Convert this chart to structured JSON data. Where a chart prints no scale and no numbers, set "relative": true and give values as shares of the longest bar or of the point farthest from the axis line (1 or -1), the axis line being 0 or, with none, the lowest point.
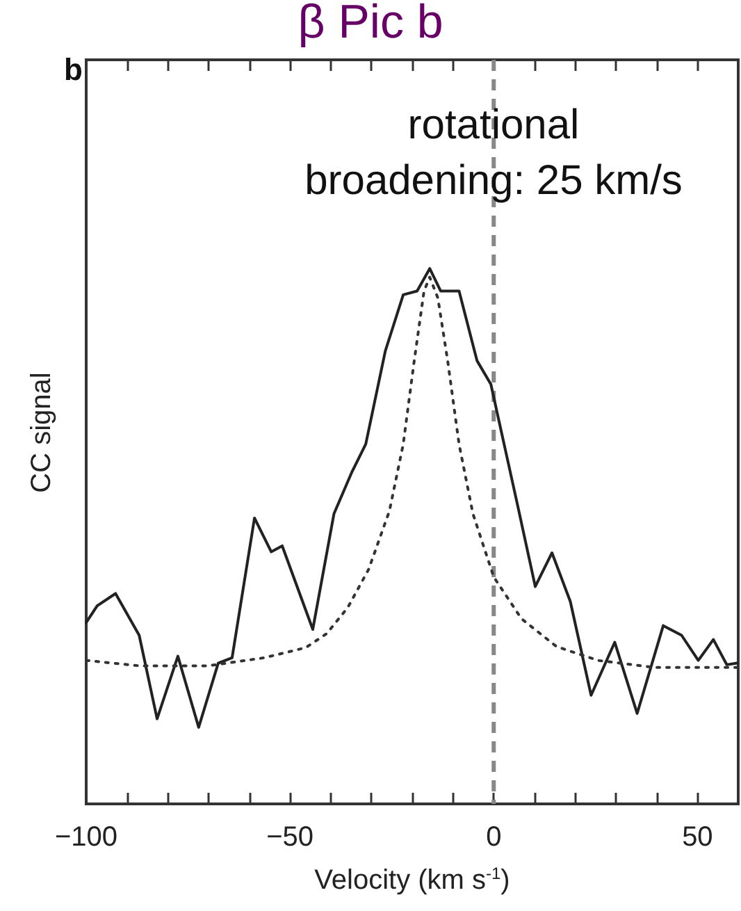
{
  "chart_data": {
    "type": "line",
    "title": "β Pic b",
    "xlabel": "Velocity (km s$^{-1}$)",
    "ylabel": "CC signal",
    "relative": true,
    "annotations": [
      "b",
      "rotational\nbroadening: 25 km/s"
    ],
    "xlim": [
      -100,
      60
    ],
    "xticks": [
      {
        "value": -100,
        "label": "−100"
      },
      {
        "value": -90,
        "label": null
      },
      {
        "value": -80,
        "label": null
      },
      {
        "value": -70,
        "label": null
      },
      {
        "value": -60,
        "label": null
      },
      {
        "value": -50,
        "label": "−50"
      },
      {
        "value": -40,
        "label": null
      },
      {
        "value": -30,
        "label": null
      },
      {
        "value": -20,
        "label": null
      },
      {
        "value": -10,
        "label": null
      },
      0,
      {
        "value": 10,
        "label": null
      },
      {
        "value": 20,
        "label": null
      },
      {
        "value": 30,
        "label": null
      },
      {
        "value": 40,
        "label": null
      },
      50
    ],
    "ref_lines": [
      {
        "axis": "x",
        "value": 0,
        "color": "#888888",
        "line_style": "dashed"
      }
    ],
    "grid": false,
    "marker": "none",
    "series": [
      {
        "color": "#222222",
        "line_style": "solid",
        "x": [
          -100,
          -97.3,
          -92.8,
          -87.0,
          -82.6,
          -77.5,
          -72.4,
          -67.6,
          -64.2,
          -58.7,
          -54.6,
          -51.9,
          -44.4,
          -39.2,
          -34.8,
          -31.4,
          -26.6,
          -22.2,
          -18.8,
          -15.7,
          -13.0,
          -8.5,
          -4.1,
          -0.7,
          5.8,
          10.2,
          14.3,
          18.8,
          23.9,
          29.7,
          35.2,
          41.6,
          46.1,
          50.2,
          53.9,
          57.2,
          59.7
        ],
        "values": [
          0.339,
          0.37,
          0.393,
          0.315,
          0.159,
          0.276,
          0.143,
          0.263,
          0.273,
          0.534,
          0.471,
          0.482,
          0.326,
          0.542,
          0.62,
          0.672,
          0.846,
          0.951,
          0.958,
          1.0,
          0.958,
          0.958,
          0.828,
          0.784,
          0.56,
          0.406,
          0.469,
          0.378,
          0.203,
          0.302,
          0.169,
          0.333,
          0.315,
          0.268,
          0.307,
          0.26,
          0.263
        ]
      },
      {
        "color": "#333333",
        "line_style": "dotted",
        "x": [
          -100,
          -87.0,
          -70.0,
          -56.3,
          -46.1,
          -41.0,
          -35.8,
          -30.7,
          -25.6,
          -22.2,
          -19.5,
          -17.1,
          -15.7,
          -13.7,
          -11.3,
          -8.5,
          -5.1,
          0,
          6.8,
          15.4,
          25.6,
          39.2,
          59.7
        ],
        "values": [
          0.268,
          0.258,
          0.258,
          0.273,
          0.292,
          0.318,
          0.367,
          0.438,
          0.547,
          0.672,
          0.828,
          0.958,
          0.984,
          0.945,
          0.828,
          0.672,
          0.542,
          0.424,
          0.346,
          0.294,
          0.268,
          0.255,
          0.255
        ]
      }
    ]
  }
}
